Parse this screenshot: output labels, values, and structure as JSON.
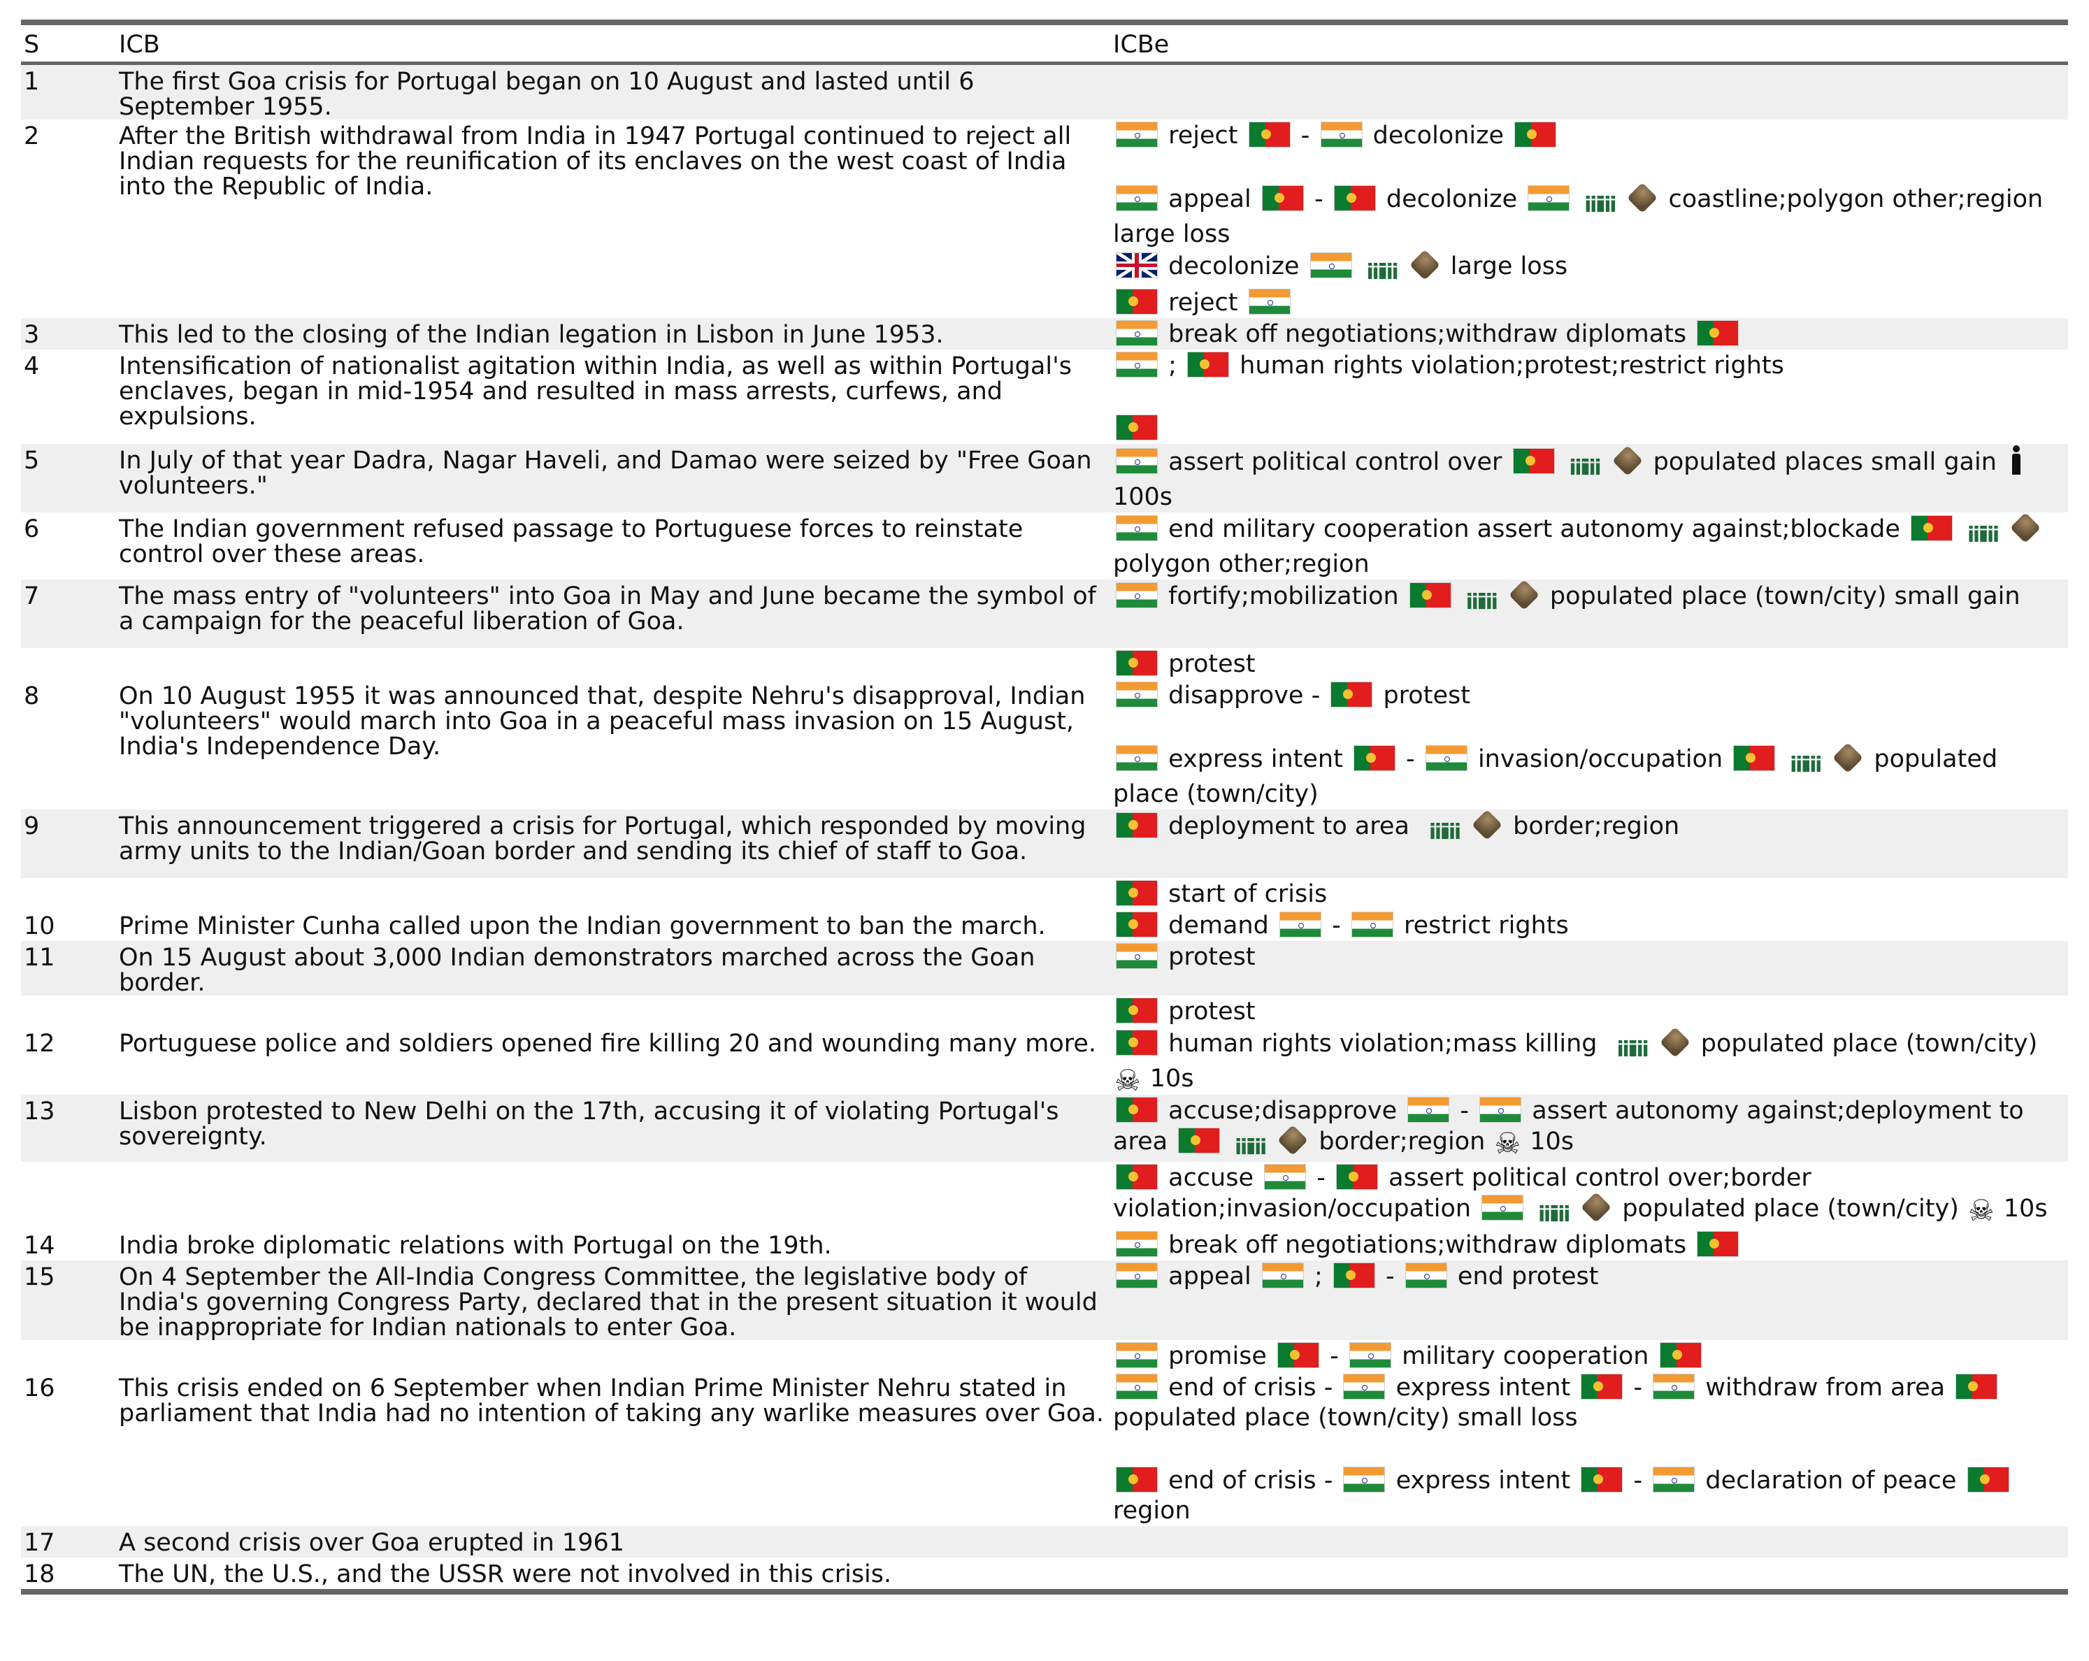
{
  "columns": [
    "S",
    "ICB",
    "ICBe"
  ],
  "rows": [
    {
      "s": "1",
      "icb": "The first Goa crisis for Portugal began on 10 August and lasted until 6 September 1955.",
      "shade": true,
      "pre": [],
      "post": []
    },
    {
      "s": "2",
      "icb": "After the British withdrawal from India in 1947 Portugal continued to reject all Indian requests for the reunification of its enclaves on the west coast of India into the Republic of India.",
      "shade": false,
      "pre": [],
      "post": [
        {
          "t": [
            {
              "f": "in"
            },
            {
              "w": "reject"
            },
            {
              "f": "pt"
            },
            {
              "w": "-"
            },
            {
              "f": "in"
            },
            {
              "w": "decolonize"
            },
            {
              "f": "pt"
            }
          ]
        },
        {
          "gap": true
        },
        {
          "t": [
            {
              "f": "in"
            },
            {
              "w": "appeal"
            },
            {
              "f": "pt"
            },
            {
              "w": "-"
            },
            {
              "f": "pt"
            },
            {
              "w": "decolonize"
            },
            {
              "f": "in"
            },
            {
              "i": "soldiers"
            },
            {
              "i": "terrain"
            },
            {
              "w": "coastline;polygon other;region large loss"
            }
          ]
        },
        {
          "t": [
            {
              "f": "uk"
            },
            {
              "w": "decolonize"
            },
            {
              "f": "in"
            },
            {
              "i": "soldiers"
            },
            {
              "i": "terrain"
            },
            {
              "w": "large loss"
            }
          ]
        },
        {
          "t": [
            {
              "f": "pt"
            },
            {
              "w": "reject"
            },
            {
              "f": "in"
            }
          ]
        }
      ]
    },
    {
      "s": "3",
      "icb": "This led to the closing of the Indian legation in Lisbon in June 1953.",
      "shade": true,
      "pre": [],
      "post": [
        {
          "t": [
            {
              "f": "in"
            },
            {
              "w": "break off negotiations;withdraw diplomats"
            },
            {
              "f": "pt"
            }
          ]
        }
      ]
    },
    {
      "s": "4",
      "icb": "Intensification of nationalist agitation within India, as well as within Portugal's enclaves, began in mid-1954 and resulted in mass arrests, curfews, and expulsions.",
      "shade": false,
      "pre": [],
      "post": [
        {
          "t": [
            {
              "f": "in"
            },
            {
              "w": ";"
            },
            {
              "f": "pt"
            },
            {
              "w": "human rights violation;protest;restrict rights"
            }
          ]
        },
        {
          "gap": true
        },
        {
          "t": [
            {
              "f": "pt"
            }
          ]
        }
      ]
    },
    {
      "s": "5",
      "icb": "In July of that year Dadra, Nagar Haveli, and Damao were seized by \"Free Goan volunteers.\"",
      "shade": true,
      "pre": [],
      "post": [
        {
          "t": [
            {
              "f": "in"
            },
            {
              "w": "assert political control over"
            },
            {
              "f": "pt"
            },
            {
              "i": "soldiers"
            },
            {
              "i": "terrain"
            },
            {
              "w": "populated places small gain"
            },
            {
              "i": "person"
            },
            {
              "w": "100s"
            }
          ]
        }
      ]
    },
    {
      "s": "6",
      "icb": "The Indian government refused passage to Portuguese forces to reinstate control over these areas.",
      "shade": false,
      "pre": [],
      "post": [
        {
          "t": [
            {
              "f": "in"
            },
            {
              "w": "end military cooperation assert autonomy against;blockade"
            },
            {
              "f": "pt"
            },
            {
              "i": "soldiers"
            },
            {
              "i": "terrain"
            },
            {
              "w": "polygon other;region"
            }
          ]
        }
      ]
    },
    {
      "s": "7",
      "icb": "The mass entry of \"volunteers\" into Goa in May and June became the symbol of a campaign for the peaceful liberation of Goa.",
      "shade": true,
      "pre": [],
      "post": [
        {
          "t": [
            {
              "f": "in"
            },
            {
              "w": "fortify;mobilization"
            },
            {
              "f": "pt"
            },
            {
              "i": "soldiers"
            },
            {
              "i": "terrain"
            },
            {
              "w": "populated place (town/city) small gain"
            }
          ]
        },
        {
          "gap": true
        }
      ]
    },
    {
      "s": "8",
      "icb": "On 10 August 1955 it was announced that, despite Nehru's disapproval, Indian \"volunteers\" would march into Goa in a peaceful mass invasion on 15 August, India's Independence Day.",
      "shade": false,
      "pre": [
        {
          "t": [
            {
              "f": "pt"
            },
            {
              "w": "protest"
            }
          ]
        }
      ],
      "post": [
        {
          "t": [
            {
              "f": "in"
            },
            {
              "w": "disapprove -"
            },
            {
              "f": "pt"
            },
            {
              "w": "protest"
            }
          ]
        },
        {
          "gap": true
        },
        {
          "t": [
            {
              "f": "in"
            },
            {
              "w": "express intent"
            },
            {
              "f": "pt"
            },
            {
              "w": "-"
            },
            {
              "f": "in"
            },
            {
              "w": "invasion/occupation"
            },
            {
              "f": "pt"
            },
            {
              "i": "soldiers"
            },
            {
              "i": "terrain"
            },
            {
              "w": "populated place (town/city)"
            }
          ]
        }
      ]
    },
    {
      "s": "9",
      "icb": "This announcement triggered a crisis for Portugal, which responded by moving army units to the Indian/Goan border and sending its chief of staff to Goa.",
      "shade": true,
      "pre": [],
      "post": [
        {
          "t": [
            {
              "f": "pt"
            },
            {
              "w": "deployment to area"
            },
            {
              "i": "soldiers"
            },
            {
              "i": "terrain"
            },
            {
              "w": "border;region"
            }
          ]
        },
        {
          "gap": true
        }
      ]
    },
    {
      "s": "10",
      "icb": "Prime Minister Cunha called upon the Indian government to ban the march.",
      "shade": false,
      "pre": [
        {
          "t": [
            {
              "f": "pt"
            },
            {
              "w": "start of crisis"
            }
          ]
        }
      ],
      "post": [
        {
          "t": [
            {
              "f": "pt"
            },
            {
              "w": "demand"
            },
            {
              "f": "in"
            },
            {
              "w": "-"
            },
            {
              "f": "in"
            },
            {
              "w": "restrict rights"
            }
          ]
        }
      ]
    },
    {
      "s": "11",
      "icb": "On 15 August about 3,000 Indian demonstrators marched across the Goan border.",
      "shade": true,
      "pre": [],
      "post": [
        {
          "t": [
            {
              "f": "in"
            },
            {
              "w": "protest"
            }
          ]
        }
      ]
    },
    {
      "s": "12",
      "icb": "Portuguese police and soldiers opened fire killing 20 and wounding many more.",
      "shade": false,
      "pre": [
        {
          "t": [
            {
              "f": "pt"
            },
            {
              "w": "protest"
            }
          ]
        }
      ],
      "post": [
        {
          "t": [
            {
              "f": "pt"
            },
            {
              "w": "human rights violation;mass killing"
            },
            {
              "i": "soldiers"
            },
            {
              "i": "terrain"
            },
            {
              "w": "populated place (town/city)"
            },
            {
              "i": "skull"
            },
            {
              "w": "10s"
            }
          ]
        }
      ]
    },
    {
      "s": "13",
      "icb": "Lisbon protested to New Delhi on the 17th, accusing it of violating Portugal's sovereignty.",
      "shade": true,
      "pre": [],
      "post": [
        {
          "t": [
            {
              "f": "pt"
            },
            {
              "w": "accuse;disapprove"
            },
            {
              "f": "in"
            },
            {
              "w": "-"
            },
            {
              "f": "in"
            },
            {
              "w": "assert autonomy against;deployment to area"
            },
            {
              "f": "pt"
            },
            {
              "i": "soldiers"
            },
            {
              "i": "terrain"
            },
            {
              "w": "border;region"
            },
            {
              "i": "skull"
            },
            {
              "w": "10s"
            }
          ]
        }
      ]
    },
    {
      "s": "",
      "icb": "",
      "shade": false,
      "pre": [],
      "post": [
        {
          "t": [
            {
              "f": "pt"
            },
            {
              "w": "accuse"
            },
            {
              "f": "in"
            },
            {
              "w": "-"
            },
            {
              "f": "pt"
            },
            {
              "w": "assert political control over;border violation;invasion/occupation"
            },
            {
              "f": "in"
            },
            {
              "i": "soldiers"
            },
            {
              "i": "terrain"
            },
            {
              "w": "populated place (town/city)"
            },
            {
              "i": "skull"
            },
            {
              "w": "10s"
            }
          ]
        }
      ]
    },
    {
      "s": "14",
      "icb": "India broke diplomatic relations with Portugal on the 19th.",
      "shade": false,
      "pre": [],
      "post": [
        {
          "t": [
            {
              "f": "in"
            },
            {
              "w": "break off negotiations;withdraw diplomats"
            },
            {
              "f": "pt"
            }
          ]
        }
      ]
    },
    {
      "s": "15",
      "icb": "On 4 September the All-India Congress Committee, the legislative body of India's governing Congress Party, declared that in the present situation it would be inappropriate for Indian nationals to enter Goa.",
      "shade": true,
      "pre": [],
      "post": [
        {
          "t": [
            {
              "f": "in"
            },
            {
              "w": "appeal"
            },
            {
              "f": "in"
            },
            {
              "w": ";"
            },
            {
              "f": "pt"
            },
            {
              "w": "-"
            },
            {
              "f": "in"
            },
            {
              "w": "end protest"
            }
          ]
        }
      ]
    },
    {
      "s": "16",
      "icb": "This crisis ended on 6 September when Indian Prime Minister Nehru stated in parliament that India had no intention of taking any warlike measures over Goa.",
      "shade": false,
      "pre": [
        {
          "t": [
            {
              "f": "in"
            },
            {
              "w": "promise"
            },
            {
              "f": "pt"
            },
            {
              "w": "-"
            },
            {
              "f": "in"
            },
            {
              "w": "military cooperation"
            },
            {
              "f": "pt"
            }
          ]
        }
      ],
      "post": [
        {
          "t": [
            {
              "f": "in"
            },
            {
              "w": "end of crisis -"
            },
            {
              "f": "in"
            },
            {
              "w": "express intent"
            },
            {
              "f": "pt"
            },
            {
              "w": "-"
            },
            {
              "f": "in"
            },
            {
              "w": "withdraw from area"
            },
            {
              "f": "pt"
            },
            {
              "w": "populated place (town/city) small loss"
            }
          ]
        },
        {
          "gap": true
        },
        {
          "t": [
            {
              "f": "pt"
            },
            {
              "w": "end of crisis -"
            },
            {
              "f": "in"
            },
            {
              "w": "express intent"
            },
            {
              "f": "pt"
            },
            {
              "w": "-"
            },
            {
              "f": "in"
            },
            {
              "w": "declaration of peace"
            },
            {
              "f": "pt"
            },
            {
              "w": "region"
            }
          ]
        }
      ]
    },
    {
      "s": "17",
      "icb": "A second crisis over Goa erupted in 1961",
      "shade": true,
      "pre": [],
      "post": []
    },
    {
      "s": "18",
      "icb": "The UN, the U.S., and the USSR were not involved in this crisis.",
      "shade": false,
      "pre": [],
      "post": []
    }
  ]
}
